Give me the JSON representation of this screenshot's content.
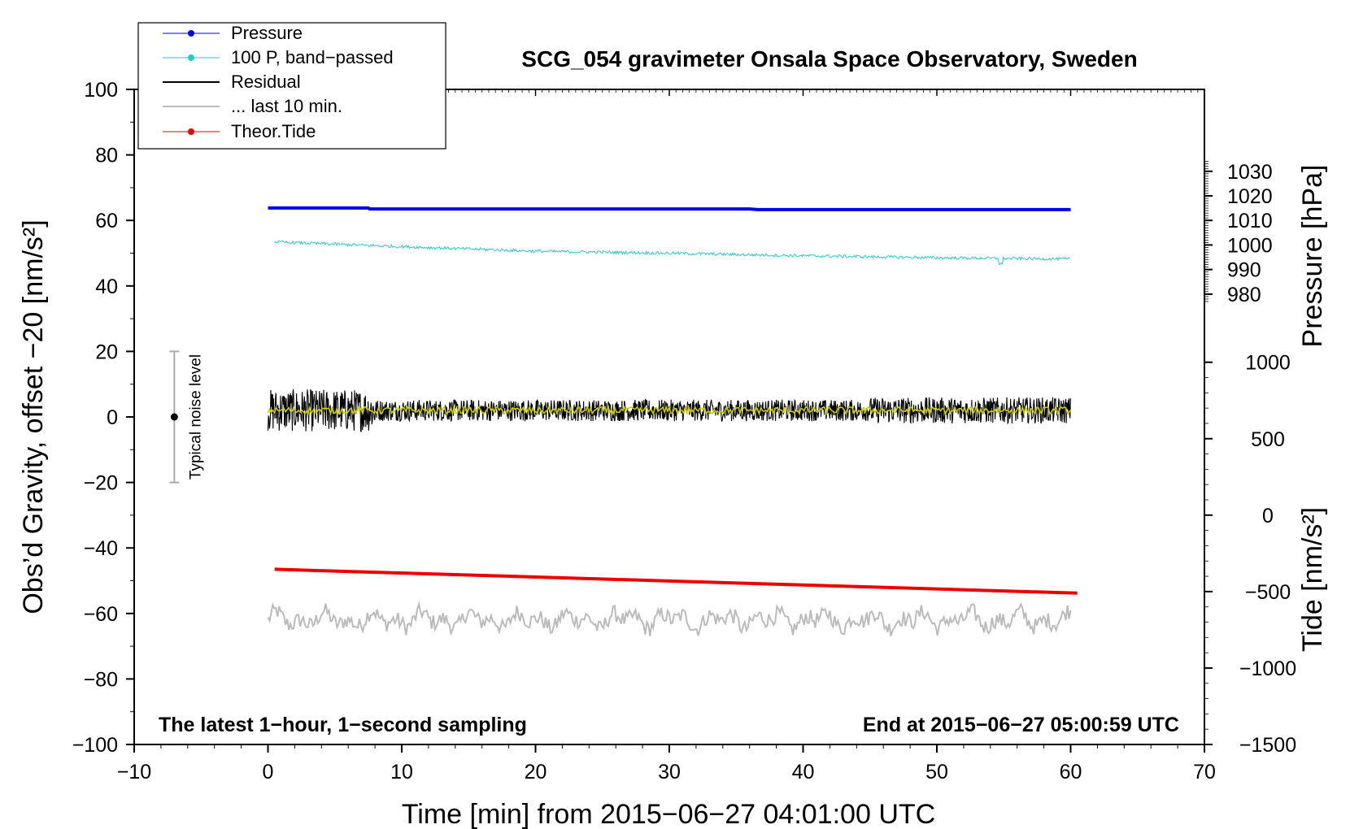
{
  "chart_data": {
    "type": "line",
    "title": "SCG_054 gravimeter Onsala Space Observatory, Sweden",
    "xlabel": "Time [min] from 2015−06−27 04:01:00 UTC",
    "ylabel": "Obs’d Gravity, offset −20 [nm/s²]",
    "y2label_pressure": "Pressure [hPa]",
    "y2label_tide": "Tide [nm/s²]",
    "xlim": [
      -10,
      70
    ],
    "ylim": [
      -100,
      100
    ],
    "pressure_scale": {
      "range": [
        1010,
        1030
      ],
      "left_value_at": [
        60,
        75
      ],
      "ticks": [
        980,
        990,
        1000,
        1010,
        1020,
        1030
      ]
    },
    "tide_scale": {
      "range": [
        -1500,
        1000
      ],
      "left_value_at": [
        -100,
        16.7
      ],
      "ticks": [
        -1500,
        -1000,
        -500,
        0,
        500,
        1000
      ]
    },
    "x_ticks": [
      -10,
      0,
      10,
      20,
      30,
      40,
      50,
      60,
      70
    ],
    "x_tick_labels": [
      "−10",
      "0",
      "10",
      "20",
      "30",
      "40",
      "50",
      "60",
      "70"
    ],
    "y_ticks": [
      -100,
      -80,
      -60,
      -40,
      -20,
      0,
      20,
      40,
      60,
      80,
      100
    ],
    "y_tick_labels": [
      "−100",
      "−80",
      "−60",
      "−40",
      "−20",
      "0",
      "20",
      "40",
      "60",
      "80",
      "100"
    ],
    "pressure_tick_labels": [
      "980",
      "990",
      "1000",
      "1010",
      "1020",
      "1030"
    ],
    "tide_tick_labels": [
      "−1500",
      "−1000",
      "−500",
      "0",
      "500",
      "1000"
    ],
    "series": [
      {
        "name": "Pressure",
        "color": "#0000ee",
        "x": [
          0,
          7.5,
          7.6,
          36,
          36.6,
          60
        ],
        "y": [
          63.8,
          63.8,
          63.5,
          63.5,
          63.3,
          63.3
        ]
      },
      {
        "name": "100 P, band−passed",
        "color": "#22cccc",
        "x": [
          0,
          10,
          20,
          30,
          40,
          50,
          60
        ],
        "y": [
          53.5,
          52,
          50.6,
          50,
          49.2,
          48.6,
          48.2
        ]
      },
      {
        "name": "Residual",
        "color": "#000000",
        "x": [
          0,
          60
        ],
        "y": [
          2,
          2
        ]
      },
      {
        "name": "... last 10 min.",
        "color": "#bbbbbb",
        "x": [
          0,
          60
        ],
        "y": [
          -62,
          -62
        ]
      },
      {
        "name": "Theor.Tide",
        "color": "#ee0000",
        "x": [
          0.5,
          60.5
        ],
        "y": [
          -46.5,
          -53.8
        ]
      }
    ],
    "residual_smooth_color": "#cccc00",
    "noise_bar": {
      "x": -7,
      "center": 0,
      "low": -20,
      "high": 20,
      "label": "Typical noise level"
    },
    "annotations": {
      "left": "The latest 1−hour, 1−second sampling",
      "right": "End at 2015−06−27 05:00:59 UTC"
    },
    "legend": {
      "placement": "top-left",
      "entries": [
        "Pressure",
        "100 P, band−passed",
        "Residual",
        "... last 10 min.",
        "Theor.Tide"
      ]
    }
  }
}
